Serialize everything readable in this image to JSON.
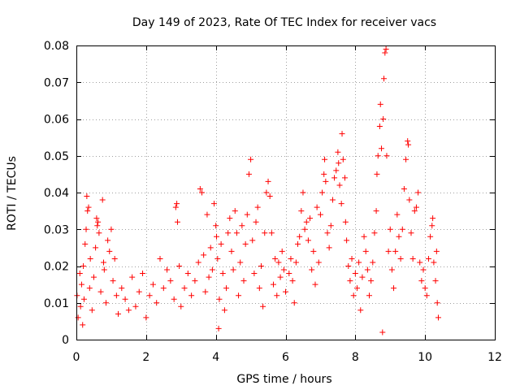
{
  "chart_data": {
    "type": "scatter",
    "title": "Day 149 of 2023, Rate Of TEC Index for receiver vacs",
    "xlabel": "GPS time / hours",
    "ylabel": "ROTI / TECUs",
    "xlim": [
      0,
      12
    ],
    "ylim": [
      0,
      0.08
    ],
    "xticks": [
      0,
      2,
      4,
      6,
      8,
      10,
      12
    ],
    "yticks": [
      0,
      0.01,
      0.02,
      0.03,
      0.04,
      0.05,
      0.06,
      0.07,
      0.08
    ],
    "xtick_labels": [
      "0",
      "2",
      "4",
      "6",
      "8",
      "10",
      "12"
    ],
    "ytick_labels": [
      "0",
      "0.01",
      "0.02",
      "0.03",
      "0.04",
      "0.05",
      "0.06",
      "0.07",
      "0.08"
    ],
    "grid": true,
    "marker": "+",
    "color": "#ff0000",
    "series": [
      {
        "name": "ROTI",
        "points": [
          [
            0.02,
            0.012
          ],
          [
            0.05,
            0.006
          ],
          [
            0.1,
            0.018
          ],
          [
            0.12,
            0.009
          ],
          [
            0.15,
            0.015
          ],
          [
            0.18,
            0.004
          ],
          [
            0.2,
            0.02
          ],
          [
            0.22,
            0.011
          ],
          [
            0.25,
            0.026
          ],
          [
            0.28,
            0.03
          ],
          [
            0.3,
            0.039
          ],
          [
            0.32,
            0.035
          ],
          [
            0.35,
            0.036
          ],
          [
            0.38,
            0.014
          ],
          [
            0.4,
            0.022
          ],
          [
            0.45,
            0.008
          ],
          [
            0.5,
            0.017
          ],
          [
            0.55,
            0.025
          ],
          [
            0.58,
            0.033
          ],
          [
            0.6,
            0.031
          ],
          [
            0.62,
            0.032
          ],
          [
            0.65,
            0.029
          ],
          [
            0.7,
            0.013
          ],
          [
            0.75,
            0.038
          ],
          [
            0.78,
            0.021
          ],
          [
            0.8,
            0.019
          ],
          [
            0.85,
            0.01
          ],
          [
            0.9,
            0.027
          ],
          [
            0.95,
            0.024
          ],
          [
            1.0,
            0.03
          ],
          [
            1.05,
            0.016
          ],
          [
            1.1,
            0.022
          ],
          [
            1.15,
            0.012
          ],
          [
            1.2,
            0.007
          ],
          [
            1.3,
            0.014
          ],
          [
            1.4,
            0.011
          ],
          [
            1.5,
            0.008
          ],
          [
            1.6,
            0.017
          ],
          [
            1.7,
            0.009
          ],
          [
            1.8,
            0.013
          ],
          [
            1.9,
            0.018
          ],
          [
            2.0,
            0.006
          ],
          [
            2.1,
            0.012
          ],
          [
            2.2,
            0.015
          ],
          [
            2.3,
            0.01
          ],
          [
            2.4,
            0.022
          ],
          [
            2.5,
            0.014
          ],
          [
            2.6,
            0.019
          ],
          [
            2.7,
            0.016
          ],
          [
            2.8,
            0.011
          ],
          [
            2.85,
            0.036
          ],
          [
            2.88,
            0.037
          ],
          [
            2.9,
            0.032
          ],
          [
            2.95,
            0.02
          ],
          [
            3.0,
            0.009
          ],
          [
            3.1,
            0.014
          ],
          [
            3.2,
            0.018
          ],
          [
            3.3,
            0.012
          ],
          [
            3.4,
            0.016
          ],
          [
            3.5,
            0.021
          ],
          [
            3.55,
            0.041
          ],
          [
            3.6,
            0.04
          ],
          [
            3.65,
            0.023
          ],
          [
            3.7,
            0.013
          ],
          [
            3.75,
            0.034
          ],
          [
            3.8,
            0.017
          ],
          [
            3.85,
            0.025
          ],
          [
            3.9,
            0.019
          ],
          [
            3.95,
            0.037
          ],
          [
            4.0,
            0.031
          ],
          [
            4.02,
            0.028
          ],
          [
            4.05,
            0.022
          ],
          [
            4.08,
            0.003
          ],
          [
            4.1,
            0.011
          ],
          [
            4.15,
            0.026
          ],
          [
            4.2,
            0.018
          ],
          [
            4.25,
            0.008
          ],
          [
            4.3,
            0.014
          ],
          [
            4.35,
            0.029
          ],
          [
            4.4,
            0.033
          ],
          [
            4.45,
            0.024
          ],
          [
            4.5,
            0.019
          ],
          [
            4.55,
            0.035
          ],
          [
            4.6,
            0.029
          ],
          [
            4.65,
            0.012
          ],
          [
            4.7,
            0.021
          ],
          [
            4.75,
            0.031
          ],
          [
            4.8,
            0.016
          ],
          [
            4.85,
            0.026
          ],
          [
            4.9,
            0.034
          ],
          [
            4.95,
            0.045
          ],
          [
            5.0,
            0.049
          ],
          [
            5.05,
            0.027
          ],
          [
            5.1,
            0.018
          ],
          [
            5.15,
            0.032
          ],
          [
            5.2,
            0.036
          ],
          [
            5.25,
            0.014
          ],
          [
            5.3,
            0.02
          ],
          [
            5.35,
            0.009
          ],
          [
            5.4,
            0.029
          ],
          [
            5.45,
            0.04
          ],
          [
            5.5,
            0.043
          ],
          [
            5.55,
            0.039
          ],
          [
            5.6,
            0.029
          ],
          [
            5.65,
            0.015
          ],
          [
            5.7,
            0.022
          ],
          [
            5.75,
            0.012
          ],
          [
            5.8,
            0.021
          ],
          [
            5.85,
            0.017
          ],
          [
            5.9,
            0.024
          ],
          [
            5.95,
            0.019
          ],
          [
            6.0,
            0.013
          ],
          [
            6.1,
            0.018
          ],
          [
            6.15,
            0.022
          ],
          [
            6.2,
            0.016
          ],
          [
            6.25,
            0.01
          ],
          [
            6.3,
            0.021
          ],
          [
            6.35,
            0.026
          ],
          [
            6.4,
            0.028
          ],
          [
            6.45,
            0.035
          ],
          [
            6.5,
            0.04
          ],
          [
            6.55,
            0.03
          ],
          [
            6.6,
            0.032
          ],
          [
            6.65,
            0.027
          ],
          [
            6.7,
            0.033
          ],
          [
            6.75,
            0.019
          ],
          [
            6.8,
            0.024
          ],
          [
            6.85,
            0.015
          ],
          [
            6.9,
            0.036
          ],
          [
            6.95,
            0.021
          ],
          [
            7.0,
            0.034
          ],
          [
            7.05,
            0.04
          ],
          [
            7.1,
            0.045
          ],
          [
            7.12,
            0.049
          ],
          [
            7.15,
            0.043
          ],
          [
            7.2,
            0.029
          ],
          [
            7.25,
            0.025
          ],
          [
            7.3,
            0.031
          ],
          [
            7.35,
            0.038
          ],
          [
            7.4,
            0.044
          ],
          [
            7.45,
            0.046
          ],
          [
            7.5,
            0.051
          ],
          [
            7.52,
            0.048
          ],
          [
            7.55,
            0.042
          ],
          [
            7.6,
            0.037
          ],
          [
            7.62,
            0.056
          ],
          [
            7.65,
            0.049
          ],
          [
            7.7,
            0.044
          ],
          [
            7.72,
            0.032
          ],
          [
            7.75,
            0.027
          ],
          [
            7.8,
            0.02
          ],
          [
            7.85,
            0.016
          ],
          [
            7.9,
            0.022
          ],
          [
            7.95,
            0.012
          ],
          [
            8.0,
            0.018
          ],
          [
            8.05,
            0.014
          ],
          [
            8.1,
            0.021
          ],
          [
            8.15,
            0.008
          ],
          [
            8.2,
            0.017
          ],
          [
            8.25,
            0.028
          ],
          [
            8.3,
            0.024
          ],
          [
            8.35,
            0.019
          ],
          [
            8.4,
            0.012
          ],
          [
            8.45,
            0.016
          ],
          [
            8.5,
            0.021
          ],
          [
            8.55,
            0.029
          ],
          [
            8.6,
            0.035
          ],
          [
            8.62,
            0.045
          ],
          [
            8.65,
            0.05
          ],
          [
            8.7,
            0.058
          ],
          [
            8.72,
            0.064
          ],
          [
            8.75,
            0.052
          ],
          [
            8.78,
            0.002
          ],
          [
            8.8,
            0.06
          ],
          [
            8.82,
            0.071
          ],
          [
            8.85,
            0.078
          ],
          [
            8.88,
            0.079
          ],
          [
            8.9,
            0.05
          ],
          [
            8.95,
            0.024
          ],
          [
            9.0,
            0.03
          ],
          [
            9.05,
            0.019
          ],
          [
            9.1,
            0.014
          ],
          [
            9.15,
            0.024
          ],
          [
            9.2,
            0.034
          ],
          [
            9.25,
            0.028
          ],
          [
            9.3,
            0.022
          ],
          [
            9.35,
            0.03
          ],
          [
            9.4,
            0.041
          ],
          [
            9.45,
            0.049
          ],
          [
            9.5,
            0.054
          ],
          [
            9.52,
            0.053
          ],
          [
            9.55,
            0.038
          ],
          [
            9.6,
            0.029
          ],
          [
            9.65,
            0.022
          ],
          [
            9.7,
            0.035
          ],
          [
            9.75,
            0.036
          ],
          [
            9.8,
            0.04
          ],
          [
            9.85,
            0.021
          ],
          [
            9.9,
            0.016
          ],
          [
            9.95,
            0.019
          ],
          [
            10.0,
            0.014
          ],
          [
            10.05,
            0.012
          ],
          [
            10.1,
            0.022
          ],
          [
            10.15,
            0.028
          ],
          [
            10.2,
            0.031
          ],
          [
            10.22,
            0.033
          ],
          [
            10.25,
            0.021
          ],
          [
            10.3,
            0.016
          ],
          [
            10.33,
            0.024
          ],
          [
            10.35,
            0.01
          ],
          [
            10.38,
            0.006
          ]
        ]
      }
    ]
  }
}
